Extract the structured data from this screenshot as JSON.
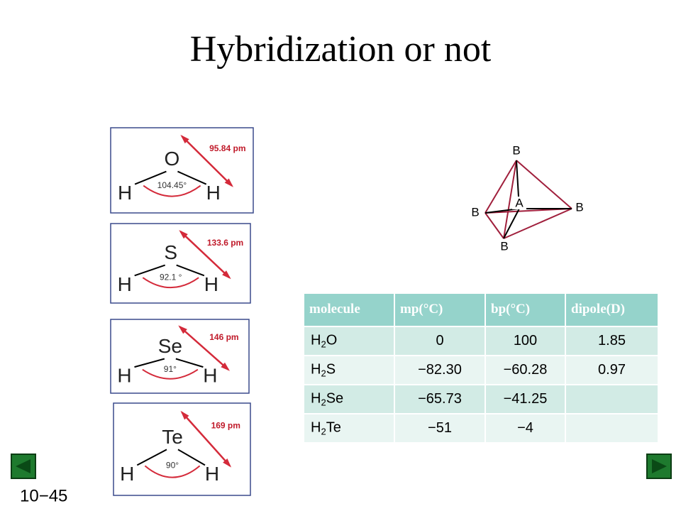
{
  "title": "Hybridization or not",
  "molecules": [
    {
      "atom": "O",
      "h_left": "H",
      "h_right": "H",
      "bond_length": "95.84 pm",
      "angle": "104.45°"
    },
    {
      "atom": "S",
      "h_left": "H",
      "h_right": "H",
      "bond_length": "133.6 pm",
      "angle": "92.1 °"
    },
    {
      "atom": "Se",
      "h_left": "H",
      "h_right": "H",
      "bond_length": "146 pm",
      "angle": "91°"
    },
    {
      "atom": "Te",
      "h_left": "H",
      "h_right": "H",
      "bond_length": "169 pm",
      "angle": "90°"
    }
  ],
  "tetrahedron": {
    "top": "B",
    "left": "B",
    "right": "B",
    "bottom": "B",
    "center": "A"
  },
  "table": {
    "header": [
      "molecule",
      "mp(°C)",
      "bp(°C)",
      "dipole(D)"
    ],
    "rows": [
      [
        {
          "base": "H",
          "sub": "2",
          "rest": "O"
        },
        "0",
        "100",
        "1.85"
      ],
      [
        {
          "base": "H",
          "sub": "2",
          "rest": "S"
        },
        "−82.30",
        "−60.28",
        "0.97"
      ],
      [
        {
          "base": "H",
          "sub": "2",
          "rest": "Se"
        },
        "−65.73",
        "−41.25",
        null
      ],
      [
        {
          "base": "H",
          "sub": "2",
          "rest": "Te"
        },
        "−51",
        "−4",
        null
      ]
    ]
  },
  "slide_number": "10−45"
}
